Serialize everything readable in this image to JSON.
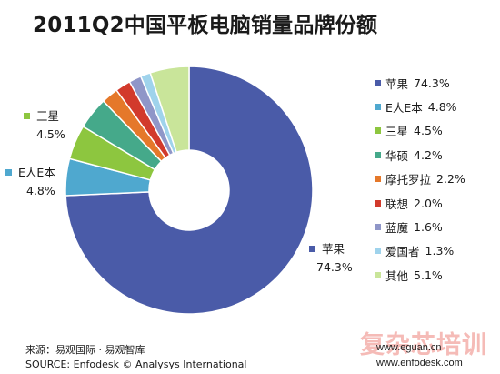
{
  "chart_data": {
    "type": "pie",
    "title": "2011Q2中国平板电脑销量品牌份额",
    "categories": [
      "苹果",
      "E人E本",
      "三星",
      "华硕",
      "摩托罗拉",
      "联想",
      "蓝魔",
      "爱国者",
      "其他"
    ],
    "values": [
      74.3,
      4.8,
      4.5,
      4.2,
      2.2,
      2.0,
      1.6,
      1.3,
      5.1
    ],
    "value_labels": [
      "74.3%",
      "4.8%",
      "4.5%",
      "4.2%",
      "2.2%",
      "2.0%",
      "1.6%",
      "1.3%",
      "5.1%"
    ],
    "colors": [
      "#4a5ba8",
      "#4fa8cf",
      "#8dc63f",
      "#45a98a",
      "#e5782a",
      "#d23a2c",
      "#8f96c8",
      "#9fd3ec",
      "#c9e59a"
    ],
    "style": "donut",
    "legend_position": "right",
    "callouts": [
      {
        "label": "三星",
        "value": "4.5%"
      },
      {
        "label": "E人E本",
        "value": "4.8%"
      },
      {
        "label": "苹果",
        "value": "74.3%"
      }
    ]
  },
  "footer": {
    "source_cn": "来源：易观国际 · 易观智库",
    "source_en": "SOURCE: Enfodesk © Analysys International",
    "site_1": "www.eguan.cn",
    "site_2": "www.enfodesk.com",
    "watermark": "复杂芯培训"
  }
}
